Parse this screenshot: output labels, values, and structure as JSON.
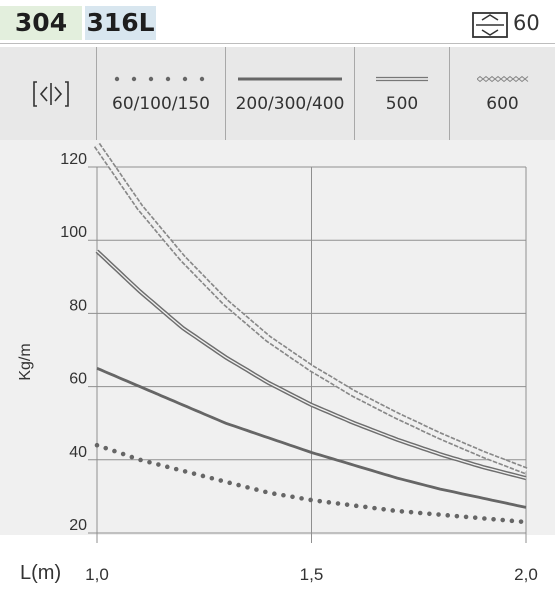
{
  "header": {
    "badges": [
      "304",
      "316L"
    ],
    "thickness_value": "60",
    "colors": {
      "badge_304": "#e3efdd",
      "badge_316": "#d8e6ef"
    },
    "icons": {
      "thickness": "box-thickness-icon",
      "width": "width-arrows-icon"
    }
  },
  "legend": {
    "items": [
      {
        "label": "60/100/150",
        "style": "dotted"
      },
      {
        "label": "200/300/400",
        "style": "solid-thick"
      },
      {
        "label": "500",
        "style": "double-line"
      },
      {
        "label": "600",
        "style": "zigzag"
      }
    ]
  },
  "chart_data": {
    "type": "line",
    "xlabel": "L(m)",
    "ylabel": "Kg/m",
    "xticks": [
      "1,0",
      "1,5",
      "2,0"
    ],
    "yticks": [
      "20",
      "40",
      "60",
      "80",
      "100",
      "120"
    ],
    "xlim": [
      1.0,
      2.0
    ],
    "ylim": [
      20,
      120
    ],
    "grid": true,
    "series": [
      {
        "name": "60/100/150",
        "style": "dotted",
        "x": [
          1.0,
          1.1,
          1.2,
          1.3,
          1.4,
          1.5,
          1.6,
          1.7,
          1.8,
          1.9,
          2.0
        ],
        "y": [
          44,
          40,
          37,
          34,
          31,
          29,
          27.5,
          26,
          25,
          24,
          23
        ]
      },
      {
        "name": "200/300/400",
        "style": "solid-thick",
        "x": [
          1.0,
          1.1,
          1.2,
          1.3,
          1.4,
          1.5,
          1.6,
          1.7,
          1.8,
          1.9,
          2.0
        ],
        "y": [
          65,
          60,
          55,
          50,
          46,
          42,
          38.5,
          35,
          32,
          29.5,
          27
        ]
      },
      {
        "name": "500",
        "style": "double-line",
        "x": [
          1.0,
          1.1,
          1.2,
          1.3,
          1.4,
          1.5,
          1.6,
          1.7,
          1.8,
          1.9,
          2.0
        ],
        "y": [
          97,
          86,
          76,
          68,
          61,
          55,
          50,
          45.5,
          41.5,
          38,
          35
        ]
      },
      {
        "name": "600",
        "style": "zigzag",
        "x": [
          1.0,
          1.1,
          1.2,
          1.3,
          1.4,
          1.5,
          1.6,
          1.7,
          1.8,
          1.9,
          2.0
        ],
        "y": [
          126,
          109,
          95,
          83,
          73,
          65,
          58,
          52,
          46.5,
          41.5,
          37
        ]
      }
    ]
  }
}
